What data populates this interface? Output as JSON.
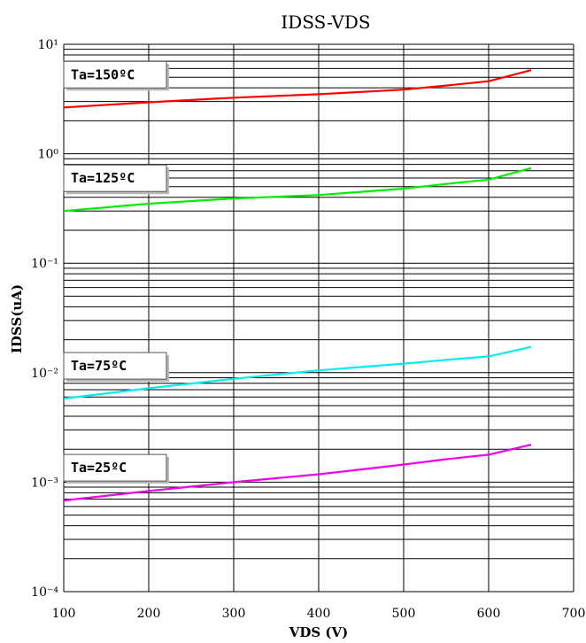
{
  "chart_data": {
    "type": "line",
    "title": "IDSS-VDS",
    "xlabel": "VDS (V)",
    "ylabel": "IDSS(uA)",
    "xlim": [
      100,
      700
    ],
    "ylim": [
      0.0001,
      10
    ],
    "y_scale": "log",
    "grid": true,
    "x_ticks": [
      "100",
      "200",
      "300",
      "400",
      "500",
      "600",
      "700"
    ],
    "y_ticks": [
      "10¹",
      "10⁰",
      "10⁻¹",
      "10⁻²",
      "10⁻³",
      "10⁻⁴"
    ],
    "series": [
      {
        "name": "Ta=150ºC",
        "color": "#ff0000",
        "x": [
          100,
          200,
          300,
          400,
          500,
          550,
          600,
          650
        ],
        "y": [
          2.65,
          2.95,
          3.25,
          3.5,
          3.85,
          4.2,
          4.6,
          5.8
        ]
      },
      {
        "name": "Ta=125ºC",
        "color": "#00ee00",
        "x": [
          100,
          200,
          300,
          400,
          500,
          550,
          600,
          650
        ],
        "y": [
          0.3,
          0.35,
          0.39,
          0.42,
          0.48,
          0.53,
          0.58,
          0.74
        ]
      },
      {
        "name": "Ta=75ºC",
        "color": "#00eeee",
        "x": [
          100,
          200,
          300,
          400,
          500,
          550,
          600,
          650
        ],
        "y": [
          0.0058,
          0.0072,
          0.0088,
          0.0105,
          0.0121,
          0.0131,
          0.0141,
          0.0172
        ]
      },
      {
        "name": "Ta=25ºC",
        "color": "#ee00ee",
        "x": [
          100,
          200,
          300,
          400,
          500,
          550,
          600,
          650
        ],
        "y": [
          0.00068,
          0.00083,
          0.001,
          0.00118,
          0.00145,
          0.00162,
          0.00178,
          0.0022
        ]
      }
    ]
  }
}
